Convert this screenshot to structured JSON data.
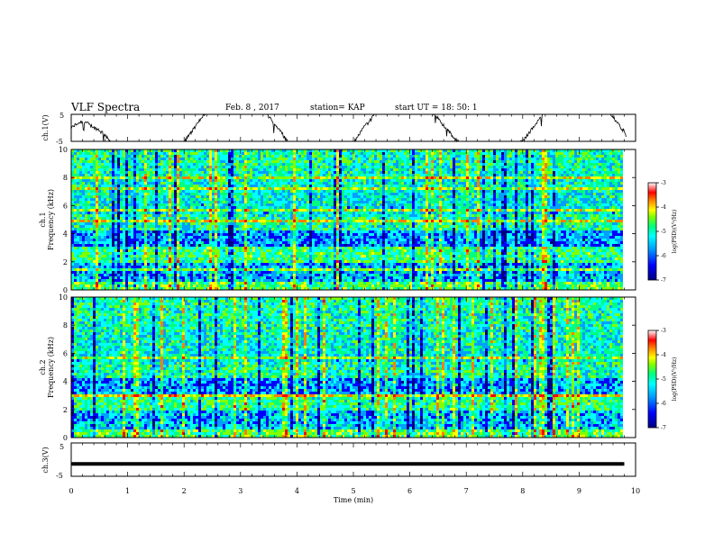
{
  "header": {
    "title": "VLF Spectra",
    "date": "Feb. 8 , 2017",
    "station": "station= KAP",
    "start": "start  UT =   18: 50: 1"
  },
  "colors": {
    "colormap": [
      "#000080",
      "#0000ff",
      "#00a0ff",
      "#00ffff",
      "#00ff80",
      "#80ff00",
      "#ffff00",
      "#ff8000",
      "#ff0000",
      "#ffffff"
    ],
    "trace": "#000000",
    "frame": "#000000"
  },
  "chart_data": [
    {
      "type": "line",
      "name": "ch1-waveform",
      "ylabel": "ch.1(V)",
      "ylim": [
        -5,
        5
      ],
      "yticks": [
        "5",
        "-5"
      ],
      "xlim": [
        0,
        10
      ],
      "description_values": {
        "mean_level": -0.5,
        "fluctuation": 1.5
      }
    },
    {
      "type": "heatmap",
      "name": "ch1-spectrogram",
      "ylabel": "ch.1\nFrequency (kHz)",
      "ylim": [
        0,
        10
      ],
      "yticks": [
        "0",
        "2",
        "4",
        "6",
        "8",
        "10"
      ],
      "xlim": [
        0,
        10
      ],
      "data_end_min": 9.8,
      "colorbar": {
        "label": "log(PSD)(V²/Hz)",
        "range": [
          -7,
          -3
        ],
        "ticks": [
          "-3",
          "-4",
          "-5",
          "-6",
          "-7"
        ]
      }
    },
    {
      "type": "heatmap",
      "name": "ch2-spectrogram",
      "ylabel": "ch.2\nFrequency (kHz)",
      "ylim": [
        0,
        10
      ],
      "yticks": [
        "0",
        "2",
        "4",
        "6",
        "8",
        "10"
      ],
      "xlim": [
        0,
        10
      ],
      "data_end_min": 9.8,
      "colorbar": {
        "label": "log(PSD)(V²/Hz)",
        "range": [
          -7,
          -3
        ],
        "ticks": [
          "-3",
          "-4",
          "-5",
          "-6",
          "-7"
        ]
      }
    },
    {
      "type": "line",
      "name": "ch3-waveform",
      "ylabel": "ch.3(V)",
      "ylim": [
        -5,
        5
      ],
      "yticks": [
        "5",
        "-5"
      ],
      "xlim": [
        0,
        10
      ],
      "values_flat": -1.3
    }
  ],
  "xaxis": {
    "label": "Time  (min)",
    "ticks": [
      "0",
      "1",
      "2",
      "3",
      "4",
      "5",
      "6",
      "7",
      "8",
      "9",
      "10"
    ]
  },
  "labels": {
    "ch1_panel_label": "ch.1(V)",
    "ch1_spec_label1": "ch.1",
    "ch1_spec_label2": "Frequency (kHz)",
    "ch2_spec_label1": "ch.2",
    "ch2_spec_label2": "Frequency (kHz)",
    "ch3_panel_label": "ch.3(V)",
    "cb1_label": "log(PSD)(V²/Hz)",
    "cb2_label": "log(PSD)(V²/Hz)"
  }
}
